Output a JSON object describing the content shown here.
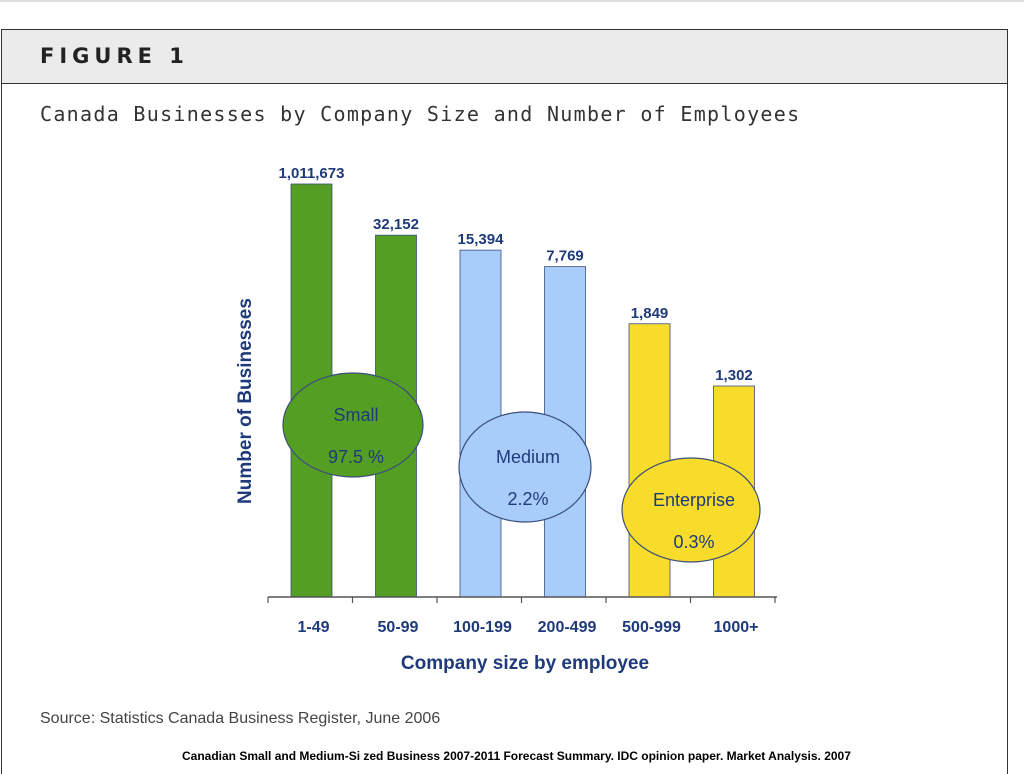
{
  "header": {
    "figure_label": "FIGURE 1",
    "subtitle": "Canada Businesses by Company Size and Number of Employees"
  },
  "source": "Source: Statistics Canada Business Register, June 2006",
  "footnote": "Canadian Small and Medium-Si zed Business 2007-2011 Forecast Summary.  IDC opinion paper. Market Analysis. 2007",
  "chart_data": {
    "type": "bar",
    "title": "",
    "xlabel": "Company size by employee",
    "ylabel": "Number of Businesses",
    "categories": [
      "1-49",
      "50-99",
      "100-199",
      "200-499",
      "500-999",
      "1000+"
    ],
    "values": [
      1011673,
      32152,
      15394,
      7769,
      1849,
      1302
    ],
    "data_labels": [
      "1,011,673",
      "32,152",
      "15,394",
      "7,769",
      "1,849",
      "1,302"
    ],
    "axis_scale": "not proportional (illustrative)",
    "grid": false,
    "bar_colors": [
      "#559e24",
      "#559e24",
      "#a9cdfb",
      "#a9cdfb",
      "#f7dc2c",
      "#f7dc2c"
    ],
    "groups": [
      {
        "name": "Small",
        "share": "97.5 %",
        "color": "#559e24",
        "bars": [
          0,
          1
        ]
      },
      {
        "name": "Medium",
        "share": "2.2%",
        "color": "#a9cdfb",
        "bars": [
          2,
          3
        ]
      },
      {
        "name": "Enterprise",
        "share": "0.3%",
        "color": "#f7dc2c",
        "bars": [
          4,
          5
        ]
      }
    ],
    "text_color": "#1f3a7a"
  }
}
